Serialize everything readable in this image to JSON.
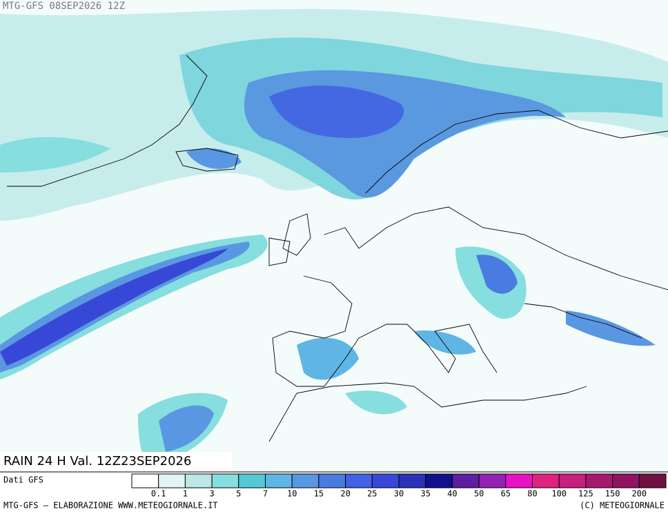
{
  "header": {
    "title": "MTG-GFS 08SEP2026 12Z"
  },
  "map": {
    "label": "RAIN 24 H Val. 12Z23SEP2026"
  },
  "legend": {
    "source": "Dati GFS",
    "colors": [
      "#ffffff",
      "#e2f4f4",
      "#bde6e6",
      "#86dede",
      "#55c8d6",
      "#5fb6e4",
      "#5a97e2",
      "#4a7be0",
      "#4162e6",
      "#3848d6",
      "#2a32b8",
      "#10108e",
      "#5e1ea0",
      "#9420b4",
      "#e812c4",
      "#e0227e",
      "#c81e7e",
      "#a8186e",
      "#901262",
      "#701040"
    ],
    "levels": [
      0.1,
      1,
      3,
      5,
      7,
      10,
      15,
      20,
      25,
      30,
      35,
      40,
      50,
      65,
      80,
      100,
      125,
      150,
      200
    ]
  },
  "footer": {
    "left": "MTG-GFS — ELABORAZIONE WWW.METEOGIORNALE.IT",
    "right": "(C) METEOGIORNALE"
  }
}
